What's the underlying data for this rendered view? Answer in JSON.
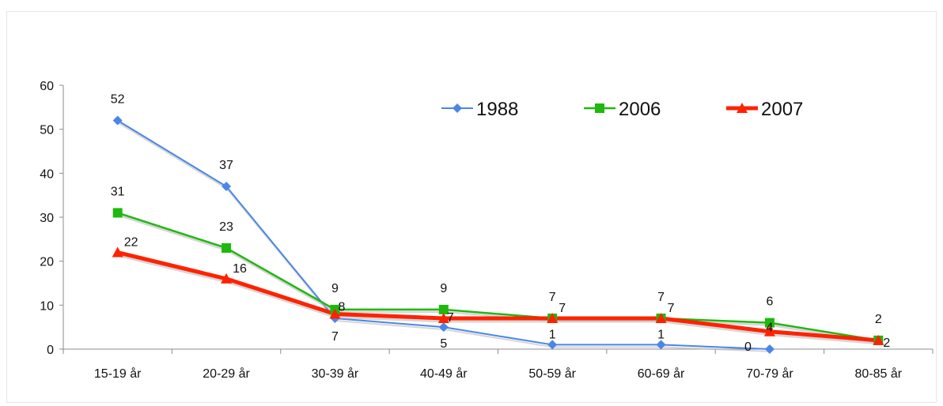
{
  "title": "",
  "colors": {
    "1988": "#4a86e8",
    "2006": "#1fb80f",
    "2007": "#ff2200",
    "axis": "#8c8c8c"
  },
  "chart_data": {
    "type": "line",
    "title": "",
    "xlabel": "",
    "ylabel": "",
    "categories": [
      "15-19 år",
      "20-29 år",
      "30-39 år",
      "40-49 år",
      "50-59 år",
      "60-69 år",
      "70-79 år",
      "80-85 år"
    ],
    "ylim": [
      0,
      60
    ],
    "yticks": [
      0,
      10,
      20,
      30,
      40,
      50,
      60
    ],
    "grid": false,
    "legend": "top-right",
    "series": [
      {
        "name": "1988",
        "values": [
          52,
          37,
          7,
          5,
          1,
          1,
          0,
          null
        ],
        "marker": "diamond",
        "color": "#4a86e8"
      },
      {
        "name": "2006",
        "values": [
          31,
          23,
          9,
          9,
          7,
          7,
          6,
          2
        ],
        "marker": "square",
        "color": "#1fb80f"
      },
      {
        "name": "2007",
        "values": [
          22,
          16,
          8,
          7,
          7,
          7,
          4,
          2
        ],
        "marker": "triangle",
        "color": "#ff2200"
      }
    ]
  }
}
